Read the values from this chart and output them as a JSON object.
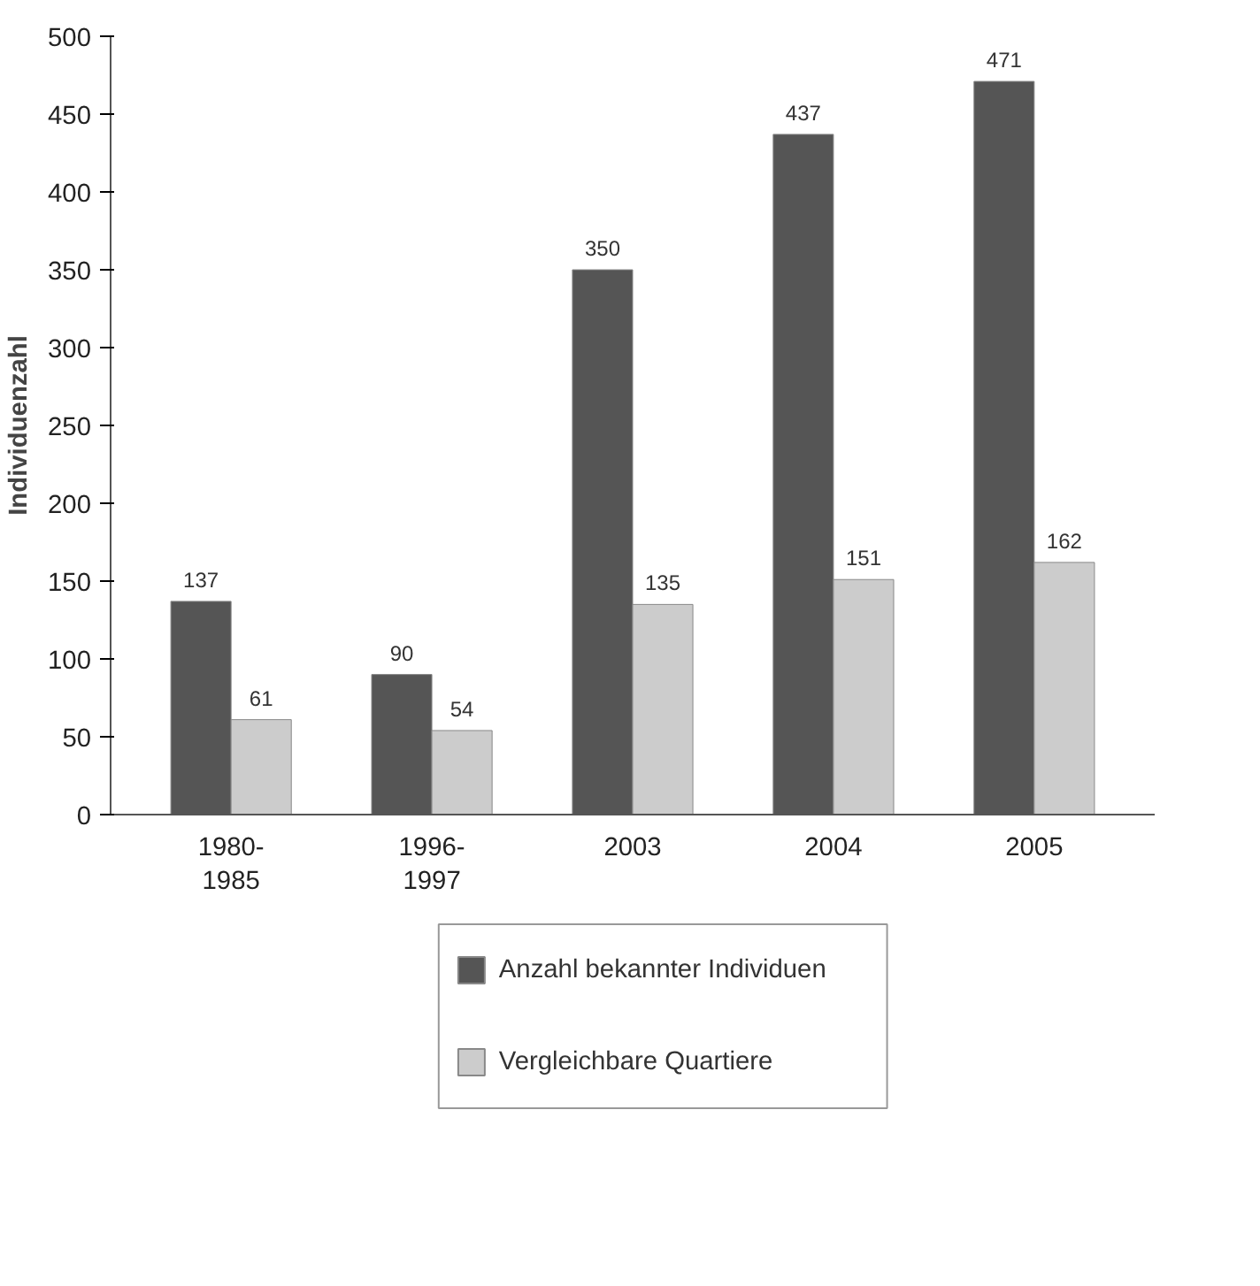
{
  "chart_data": {
    "type": "bar",
    "ylabel": "Individuenzahl",
    "categories": [
      "1980-1985",
      "1996-1997",
      "2003",
      "2004",
      "2005"
    ],
    "series": [
      {
        "name": "Anzahl bekannter Individuen",
        "color": "#555555",
        "values": [
          137,
          90,
          350,
          437,
          471
        ]
      },
      {
        "name": "Vergleichbare Quartiere",
        "color": "#cccccc",
        "values": [
          61,
          54,
          135,
          151,
          162
        ]
      }
    ],
    "ylim": [
      0,
      500
    ],
    "yticks": [
      0,
      50,
      100,
      150,
      200,
      250,
      300,
      350,
      400,
      450,
      500
    ],
    "data_labels": true,
    "legend": "bottom",
    "grid": false
  }
}
